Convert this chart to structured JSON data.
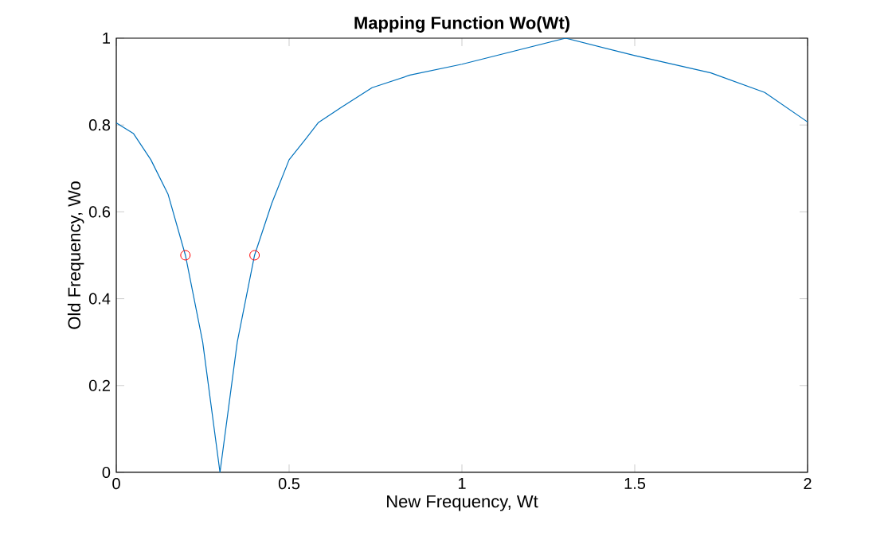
{
  "chart_data": {
    "type": "line",
    "title": "Mapping Function Wo(Wt)",
    "xlabel": "New Frequency, Wt",
    "ylabel": "Old Frequency, Wo",
    "xlim": [
      0,
      2
    ],
    "ylim": [
      0,
      1
    ],
    "xticks": [
      0,
      0.5,
      1,
      1.5,
      2
    ],
    "yticks": [
      0,
      0.2,
      0.4,
      0.6,
      0.8,
      1
    ],
    "grid": false,
    "series": [
      {
        "color": "#0072bd",
        "marker": "none",
        "x": [
          0,
          0.05,
          0.1,
          0.15,
          0.2,
          0.25,
          0.3,
          0.35,
          0.4,
          0.45,
          0.5,
          0.55,
          0.585,
          0.65,
          0.74,
          0.85,
          1.0,
          1.15,
          1.3,
          1.5,
          1.72,
          1.876,
          2
        ],
        "values": [
          0.805,
          0.78,
          0.72,
          0.64,
          0.5,
          0.3,
          0,
          0.3,
          0.5,
          0.62,
          0.72,
          0.77,
          0.806,
          0.84,
          0.886,
          0.915,
          0.94,
          0.97,
          1.0,
          0.96,
          0.92,
          0.875,
          0.807
        ]
      },
      {
        "type": "scatter",
        "color": "#ff0000",
        "marker": "circle",
        "x": [
          0.2,
          0.4
        ],
        "values": [
          0.5,
          0.5
        ]
      }
    ]
  }
}
